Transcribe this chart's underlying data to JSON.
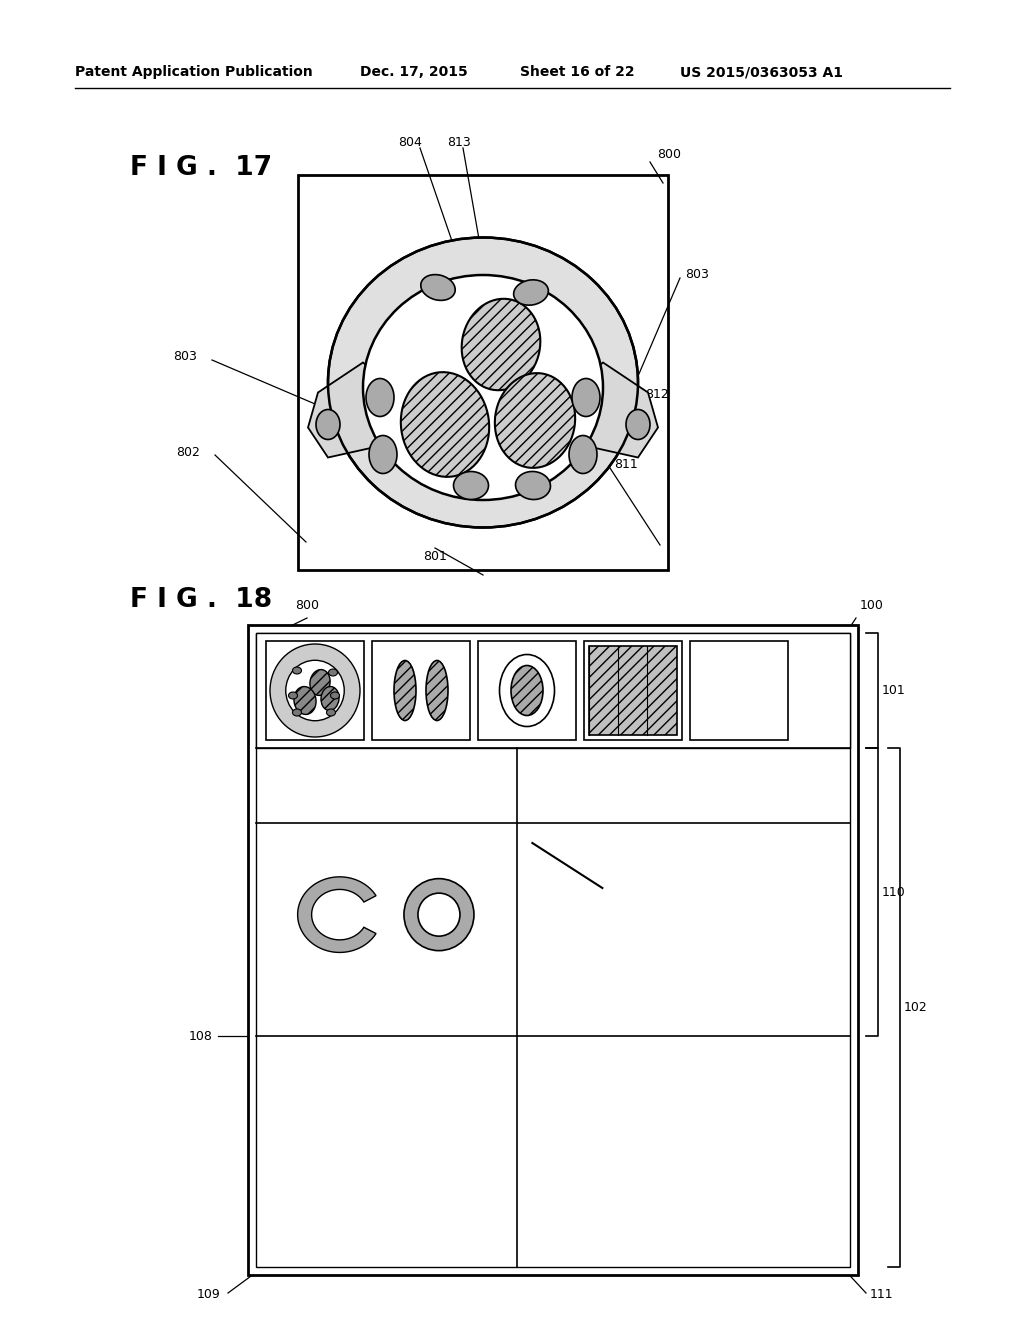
{
  "bg_color": "#ffffff",
  "header_text": "Patent Application Publication",
  "header_date": "Dec. 17, 2015",
  "header_sheet": "Sheet 16 of 22",
  "header_patent": "US 2015/0363053 A1",
  "fig17_label": "F I G .  17",
  "fig18_label": "F I G .  18"
}
